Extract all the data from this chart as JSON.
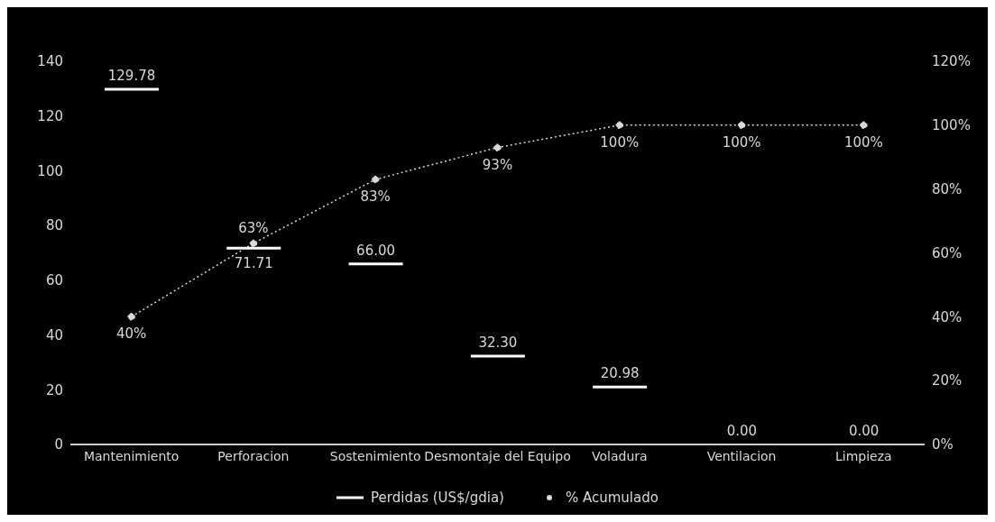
{
  "chart_data": {
    "type": "bar",
    "categories": [
      "Mantenimiento",
      "Perforacion",
      "Sostenimiento",
      "Desmontaje del Equipo",
      "Voladura",
      "Ventilacion",
      "Limpieza"
    ],
    "series": [
      {
        "name": "Perdidas (US$/gdia)",
        "color": "#000000",
        "values": [
          129.78,
          71.71,
          66.0,
          32.3,
          20.98,
          0.0,
          0.0
        ],
        "value_labels": [
          "129.78",
          "71.71",
          "66.00",
          "32.30",
          "20.98",
          "0.00",
          "0.00"
        ]
      },
      {
        "name": "% Acumulado",
        "type": "line",
        "axis": "y2",
        "color": "#d9d9d9",
        "values": [
          40,
          63,
          83,
          93,
          100,
          100,
          100
        ],
        "value_labels": [
          "40%",
          "63%",
          "83%",
          "93%",
          "100%",
          "100%",
          "100%"
        ]
      }
    ],
    "ylim": [
      0,
      140
    ],
    "yticks": [
      0,
      20,
      40,
      60,
      80,
      100,
      120,
      140
    ],
    "y2lim": [
      0,
      120
    ],
    "y2ticks": [
      {
        "value": 0,
        "label": "0%"
      },
      {
        "value": 20,
        "label": "20%"
      },
      {
        "value": 40,
        "label": "40%"
      },
      {
        "value": 60,
        "label": "60%"
      },
      {
        "value": 80,
        "label": "80%"
      },
      {
        "value": 100,
        "label": "100%"
      },
      {
        "value": 120,
        "label": "120%"
      }
    ],
    "grid": false,
    "legend": "bottom",
    "marker": "circle",
    "line_style": "dotted"
  }
}
